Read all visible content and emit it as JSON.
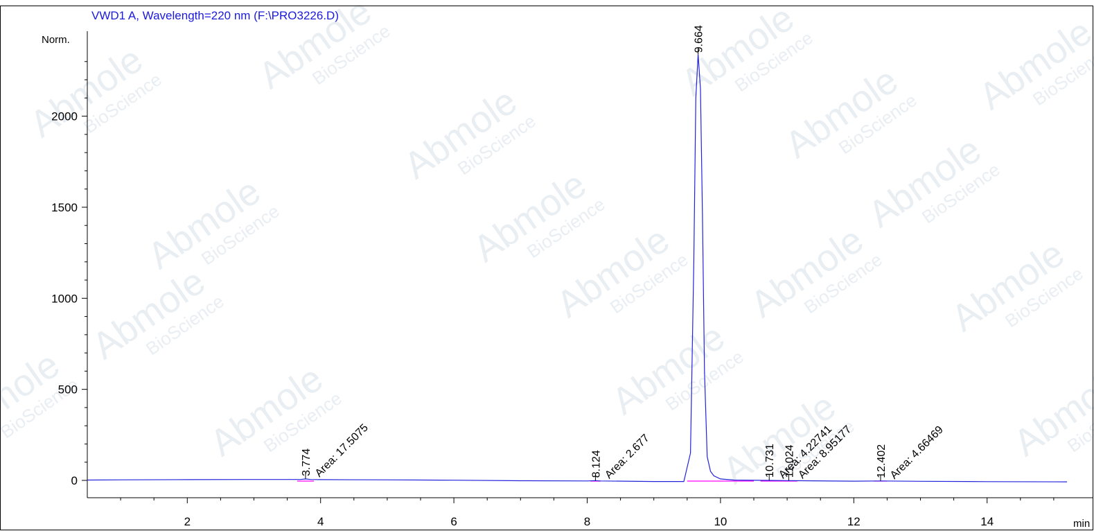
{
  "chart_data": {
    "type": "line",
    "title": "VWD1 A, Wavelength=220 nm (F:\\PRO3226.D)",
    "ylabel": "Norm.",
    "xlabel": "min",
    "xlim": [
      0.5,
      15.2
    ],
    "ylim": [
      -120,
      2450
    ],
    "x_ticks": [
      2,
      4,
      6,
      8,
      10,
      12,
      14
    ],
    "y_ticks": [
      0,
      500,
      1000,
      1500,
      2000
    ],
    "grid": false,
    "legend": "none",
    "series": [
      {
        "color": "#2222dd",
        "x": [
          0.5,
          1.0,
          2.0,
          3.0,
          3.7,
          3.774,
          3.85,
          4.0,
          5.0,
          6.0,
          7.0,
          8.0,
          8.124,
          8.2,
          9.0,
          9.45,
          9.55,
          9.6,
          9.63,
          9.664,
          9.7,
          9.73,
          9.76,
          9.8,
          9.85,
          9.9,
          10.0,
          10.2,
          10.731,
          11.0,
          12.0,
          12.402,
          13.0,
          14.0,
          15.2
        ],
        "y": [
          2,
          3,
          4,
          5,
          5,
          8,
          5,
          4,
          3,
          1,
          -2,
          -3,
          -1,
          -3,
          -6,
          -6,
          150,
          1200,
          2100,
          2340,
          2150,
          1450,
          600,
          130,
          50,
          25,
          8,
          2,
          0,
          -1,
          -4,
          -3,
          -5,
          -7,
          -8
        ]
      }
    ],
    "peaks": [
      {
        "rt": "3.774",
        "area": "Area: 17.5075",
        "x": 3.774,
        "y": 8
      },
      {
        "rt": "8.124",
        "area": "Area: 2.677",
        "x": 8.124,
        "y": -1
      },
      {
        "rt": "9.664",
        "area": "",
        "x": 9.664,
        "y": 2340
      },
      {
        "rt": "10.731",
        "area": "Area: 4.22741",
        "x": 10.731,
        "y": 0
      },
      {
        "rt": "11.024",
        "area": "Area: 8.95177",
        "x": 11.024,
        "y": -1
      },
      {
        "rt": "12.402",
        "area": "Area: 4.66469",
        "x": 12.402,
        "y": -3
      }
    ],
    "watermark": {
      "brand": "Abmole",
      "sub": "BioScience"
    }
  },
  "colors": {
    "trace": "#2222dd",
    "baseline": "#ff00ff",
    "title": "#1a1adc",
    "watermark": "#e9eef3"
  }
}
